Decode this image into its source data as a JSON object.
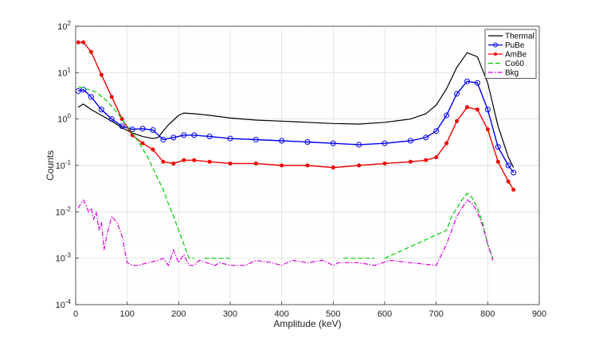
{
  "chart_data": {
    "type": "line",
    "xlabel": "Amplitude (keV)",
    "ylabel": "Counts",
    "xlim": [
      0,
      900
    ],
    "ylim": [
      0.0001,
      100
    ],
    "yscale": "log",
    "grid": true,
    "legend_position": "top-right",
    "xticks": [
      "0",
      "100",
      "200",
      "300",
      "400",
      "500",
      "600",
      "700",
      "800",
      "900"
    ],
    "yticks": [
      {
        "base": "10",
        "exp": "-4"
      },
      {
        "base": "10",
        "exp": "-3"
      },
      {
        "base": "10",
        "exp": "-2"
      },
      {
        "base": "10",
        "exp": "-1"
      },
      {
        "base": "10",
        "exp": "0"
      },
      {
        "base": "10",
        "exp": "1"
      },
      {
        "base": "10",
        "exp": "2"
      }
    ],
    "series": [
      {
        "name": "Thermal",
        "color": "#000000",
        "style": "solid",
        "marker": "none",
        "x": [
          5,
          15,
          30,
          50,
          70,
          90,
          110,
          130,
          150,
          160,
          170,
          180,
          190,
          200,
          210,
          230,
          260,
          300,
          350,
          400,
          450,
          500,
          550,
          600,
          650,
          680,
          700,
          720,
          740,
          760,
          780,
          800,
          820,
          840,
          850
        ],
        "y": [
          1.8,
          2.1,
          1.6,
          1.2,
          0.9,
          0.65,
          0.5,
          0.42,
          0.38,
          0.4,
          0.55,
          0.75,
          0.95,
          1.2,
          1.35,
          1.3,
          1.2,
          1.05,
          0.95,
          0.9,
          0.85,
          0.8,
          0.78,
          0.85,
          1.0,
          1.3,
          2.0,
          4.5,
          13,
          27,
          22,
          6,
          0.7,
          0.15,
          0.09
        ]
      },
      {
        "name": "PuBe",
        "color": "#0000ee",
        "style": "solid",
        "marker": "circle",
        "x": [
          5,
          15,
          30,
          50,
          70,
          90,
          110,
          130,
          150,
          170,
          190,
          210,
          230,
          260,
          300,
          350,
          400,
          450,
          500,
          550,
          600,
          650,
          680,
          700,
          720,
          740,
          760,
          780,
          800,
          820,
          840,
          850
        ],
        "y": [
          4.0,
          4.3,
          3.0,
          1.6,
          1.0,
          0.7,
          0.6,
          0.62,
          0.58,
          0.36,
          0.4,
          0.45,
          0.45,
          0.42,
          0.38,
          0.36,
          0.34,
          0.32,
          0.3,
          0.28,
          0.3,
          0.34,
          0.4,
          0.55,
          1.2,
          3.5,
          6.5,
          6.0,
          1.6,
          0.25,
          0.1,
          0.07
        ]
      },
      {
        "name": "AmBe",
        "color": "#ee0000",
        "style": "solid",
        "marker": "dot",
        "x": [
          5,
          15,
          30,
          50,
          70,
          90,
          110,
          130,
          150,
          170,
          190,
          210,
          230,
          260,
          300,
          350,
          400,
          450,
          500,
          550,
          600,
          650,
          680,
          700,
          720,
          740,
          760,
          780,
          800,
          820,
          840,
          850
        ],
        "y": [
          45,
          45,
          28,
          9,
          3,
          1.0,
          0.45,
          0.3,
          0.22,
          0.12,
          0.11,
          0.13,
          0.13,
          0.12,
          0.11,
          0.11,
          0.1,
          0.1,
          0.09,
          0.1,
          0.11,
          0.12,
          0.13,
          0.15,
          0.3,
          0.9,
          1.8,
          1.6,
          0.6,
          0.12,
          0.045,
          0.03
        ]
      },
      {
        "name": "Co60",
        "color": "#00cc00",
        "style": "dashed",
        "marker": "none",
        "x": [
          5,
          20,
          40,
          60,
          80,
          100,
          120,
          140,
          160,
          170,
          180,
          190,
          200,
          210,
          220,
          230,
          240,
          250,
          280,
          300,
          320,
          520,
          530,
          560,
          580,
          590,
          600,
          720,
          730,
          740,
          750,
          760,
          770,
          780,
          790,
          800,
          810
        ],
        "y": [
          5,
          4.5,
          3.8,
          2.5,
          1.4,
          0.7,
          0.35,
          0.15,
          0.05,
          0.03,
          0.015,
          0.008,
          0.004,
          0.002,
          0.001,
          0.001,
          null,
          0.001,
          0.001,
          0.001,
          null,
          0.001,
          0.001,
          0.001,
          0.001,
          null,
          0.001,
          0.004,
          0.008,
          0.012,
          0.018,
          0.025,
          0.02,
          0.012,
          0.006,
          0.002,
          0.001
        ]
      },
      {
        "name": "Bkg",
        "color": "#dd00dd",
        "style": "dashdot",
        "marker": "none",
        "x": [
          5,
          10,
          15,
          20,
          25,
          30,
          35,
          40,
          45,
          50,
          55,
          60,
          70,
          80,
          90,
          100,
          110,
          120,
          160,
          170,
          180,
          190,
          200,
          210,
          220,
          230,
          240,
          270,
          280,
          300,
          330,
          350,
          380,
          400,
          420,
          450,
          480,
          500,
          510,
          550,
          580,
          610,
          650,
          700,
          720,
          730,
          740,
          750,
          760,
          770,
          780,
          790,
          800,
          810
        ],
        "y": [
          0.012,
          0.015,
          0.018,
          0.014,
          0.01,
          0.012,
          0.007,
          0.01,
          0.004,
          0.006,
          0.0015,
          0.003,
          0.008,
          0.006,
          0.003,
          0.0008,
          0.0007,
          0.0007,
          0.0009,
          0.001,
          0.0007,
          0.0015,
          0.0008,
          0.0012,
          0.0007,
          0.0007,
          0.0009,
          0.0007,
          0.0008,
          0.0007,
          0.0007,
          0.0009,
          0.0008,
          0.0007,
          0.0009,
          0.0008,
          0.0009,
          0.0007,
          0.0008,
          0.0008,
          0.0007,
          0.0009,
          0.0008,
          0.0007,
          0.002,
          0.004,
          0.008,
          0.012,
          0.018,
          0.015,
          0.01,
          0.005,
          0.002,
          0.0009
        ]
      }
    ]
  }
}
